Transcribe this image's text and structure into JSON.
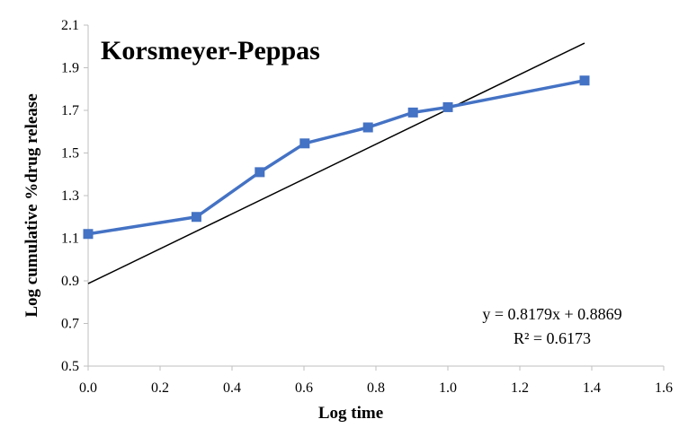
{
  "chart_data": {
    "type": "line",
    "title": "Korsmeyer-Peppas",
    "xlabel": "Log time",
    "ylabel": "Log cumulative %drug release",
    "xlim": [
      0.0,
      1.6
    ],
    "ylim": [
      0.5,
      2.1
    ],
    "xticks": [
      "0.0",
      "0.2",
      "0.4",
      "0.6",
      "0.8",
      "1.0",
      "1.2",
      "1.4",
      "1.6"
    ],
    "yticks": [
      "0.5",
      "0.7",
      "0.9",
      "1.1",
      "1.3",
      "1.5",
      "1.7",
      "1.9",
      "2.1"
    ],
    "grid": false,
    "series": [
      {
        "x": [
          0.0,
          0.301,
          0.477,
          0.602,
          0.778,
          0.903,
          1.0,
          1.38
        ],
        "y": [
          1.12,
          1.2,
          1.41,
          1.545,
          1.62,
          1.69,
          1.715,
          1.84
        ],
        "color": "#4472C4",
        "marker": "square"
      }
    ],
    "trendline": {
      "type": "linear",
      "slope": 0.8179,
      "intercept": 0.8869,
      "x_range": [
        0.0,
        1.38
      ],
      "color": "#000000",
      "equation": "y = 0.8179x + 0.8869",
      "r_squared": "R² = 0.6173"
    }
  }
}
